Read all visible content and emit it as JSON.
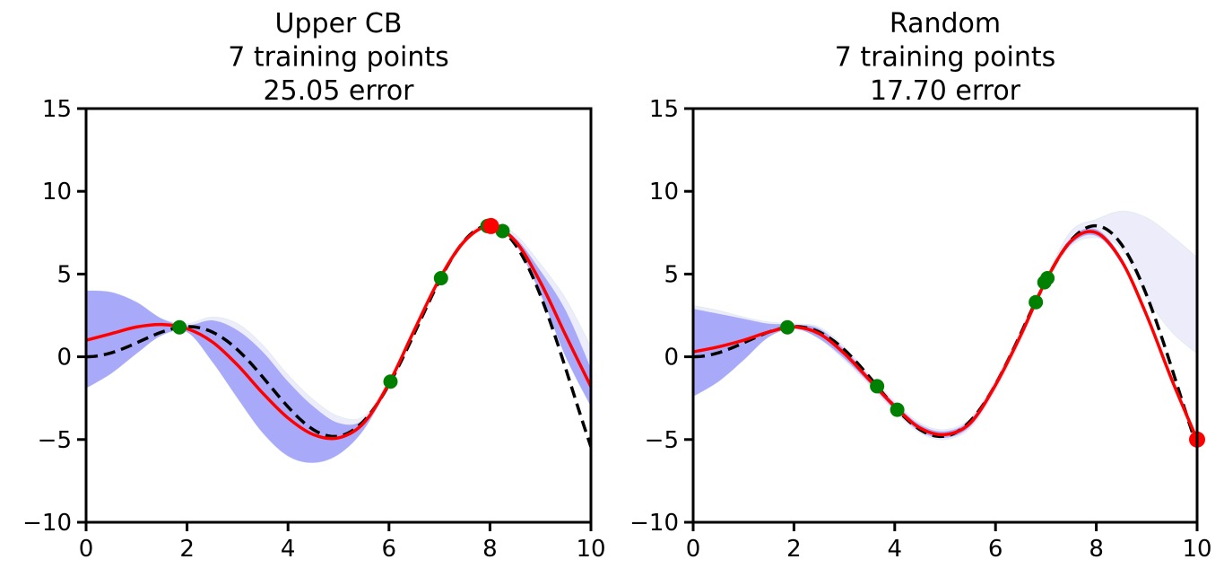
{
  "chart_data": [
    {
      "type": "line",
      "title": [
        "Upper CB",
        "7 training points",
        "25.05 error"
      ],
      "xlim": [
        0,
        10
      ],
      "ylim": [
        -10,
        15
      ],
      "xticks": [
        "0",
        "2",
        "4",
        "6",
        "8",
        "10"
      ],
      "yticks": [
        "−10",
        "−5",
        "0",
        "5",
        "10",
        "15"
      ],
      "xtick_values": [
        0,
        2,
        4,
        6,
        8,
        10
      ],
      "ytick_values": [
        -10,
        -5,
        0,
        5,
        10,
        15
      ],
      "grid": false,
      "true_function": "x*sin(x)",
      "grid_x": [
        0,
        0.5,
        1,
        1.5,
        2,
        2.5,
        3,
        3.5,
        4,
        4.5,
        5,
        5.5,
        6,
        6.5,
        7,
        7.5,
        8,
        8.5,
        9,
        9.5,
        10
      ],
      "mean": [
        1.0,
        1.4,
        1.8,
        1.95,
        1.7,
        0.9,
        -0.5,
        -2.2,
        -3.7,
        -4.7,
        -4.9,
        -4.0,
        -1.6,
        1.6,
        4.7,
        7.0,
        7.9,
        7.0,
        4.5,
        1.3,
        -1.8
      ],
      "band_upper": [
        4.0,
        3.9,
        3.3,
        2.3,
        1.9,
        2.2,
        1.6,
        0.3,
        -1.5,
        -3.0,
        -4.0,
        -3.8,
        -1.5,
        1.7,
        4.8,
        7.1,
        8.0,
        7.2,
        5.2,
        2.8,
        -0.7
      ],
      "band_lower": [
        -1.9,
        -1.0,
        0.2,
        1.3,
        1.5,
        -0.3,
        -2.5,
        -4.6,
        -6.0,
        -6.4,
        -5.9,
        -4.4,
        -1.7,
        1.5,
        4.6,
        6.9,
        7.8,
        6.8,
        3.8,
        0.0,
        -3.0
      ],
      "prev_band_upper": [
        4.0,
        3.9,
        3.3,
        2.3,
        2.0,
        2.4,
        2.0,
        0.7,
        -1.1,
        -2.6,
        -3.6,
        -3.6,
        -1.4,
        1.8,
        4.9,
        7.2,
        8.1,
        7.4,
        5.6,
        3.5,
        0.6
      ],
      "prev_band_lower": [
        -1.9,
        -1.0,
        0.2,
        1.3,
        1.5,
        -0.3,
        -2.5,
        -4.6,
        -6.0,
        -6.4,
        -5.9,
        -4.4,
        -1.7,
        1.5,
        4.6,
        6.9,
        7.8,
        6.8,
        3.8,
        0.0,
        -3.0
      ],
      "training_points": [
        [
          1.85,
          1.78
        ],
        [
          6.03,
          -1.5
        ],
        [
          7.03,
          4.75
        ],
        [
          7.95,
          7.9
        ],
        [
          8.25,
          7.6
        ],
        [
          7.98,
          7.92
        ]
      ],
      "new_point": [
        8.02,
        7.9
      ]
    },
    {
      "type": "line",
      "title": [
        "Random",
        "7 training points",
        "17.70 error"
      ],
      "xlim": [
        0,
        10
      ],
      "ylim": [
        -10,
        15
      ],
      "xticks": [
        "0",
        "2",
        "4",
        "6",
        "8",
        "10"
      ],
      "yticks": [
        "−10",
        "−5",
        "0",
        "5",
        "10",
        "15"
      ],
      "xtick_values": [
        0,
        2,
        4,
        6,
        8,
        10
      ],
      "ytick_values": [
        -10,
        -5,
        0,
        5,
        10,
        15
      ],
      "grid": false,
      "true_function": "x*sin(x)",
      "grid_x": [
        0,
        0.5,
        1,
        1.5,
        2,
        2.5,
        3,
        3.5,
        4,
        4.5,
        5,
        5.5,
        6,
        6.5,
        7,
        7.5,
        8,
        8.5,
        9,
        9.5,
        10
      ],
      "mean": [
        0.3,
        0.6,
        1.0,
        1.5,
        1.8,
        1.4,
        0.2,
        -1.4,
        -3.0,
        -4.3,
        -4.7,
        -4.0,
        -1.7,
        1.3,
        4.6,
        7.0,
        7.5,
        5.8,
        2.5,
        -1.4,
        -5.0
      ],
      "band_upper": [
        2.9,
        2.6,
        2.3,
        2.0,
        1.95,
        1.7,
        0.45,
        -1.2,
        -2.8,
        -4.1,
        -4.5,
        -3.8,
        -1.5,
        1.5,
        4.7,
        7.2,
        7.7,
        6.0,
        2.7,
        -1.2,
        -4.9
      ],
      "band_lower": [
        -2.4,
        -1.5,
        -0.2,
        1.2,
        1.7,
        1.1,
        -0.1,
        -1.6,
        -3.2,
        -4.5,
        -4.9,
        -4.2,
        -1.9,
        1.1,
        4.5,
        6.8,
        7.3,
        5.6,
        2.3,
        -1.6,
        -5.1
      ],
      "prev_band_upper": [
        3.1,
        2.8,
        2.4,
        2.1,
        2.0,
        1.8,
        0.6,
        -1.1,
        -2.7,
        -4.0,
        -4.4,
        -3.7,
        -1.4,
        1.6,
        4.8,
        7.6,
        8.3,
        8.8,
        8.4,
        7.3,
        6.0
      ],
      "prev_band_lower": [
        -2.4,
        -1.5,
        -0.2,
        1.2,
        1.7,
        1.1,
        -0.2,
        -1.7,
        -3.3,
        -4.6,
        -5.0,
        -4.3,
        -2.0,
        1.0,
        4.4,
        6.7,
        7.2,
        6.5,
        3.6,
        1.5,
        0.2
      ],
      "training_points": [
        [
          1.87,
          1.78
        ],
        [
          3.65,
          -1.78
        ],
        [
          4.05,
          -3.2
        ],
        [
          6.8,
          3.3
        ],
        [
          6.97,
          4.5
        ],
        [
          7.03,
          4.75
        ]
      ],
      "new_point": [
        10.0,
        -5.0
      ]
    }
  ],
  "colors": {
    "band": "#a9a9fa",
    "prev_band": "#ececfb",
    "mean": "#ff0000",
    "truth": "#000000",
    "points": "#008000",
    "new_point": "#ff0000"
  }
}
